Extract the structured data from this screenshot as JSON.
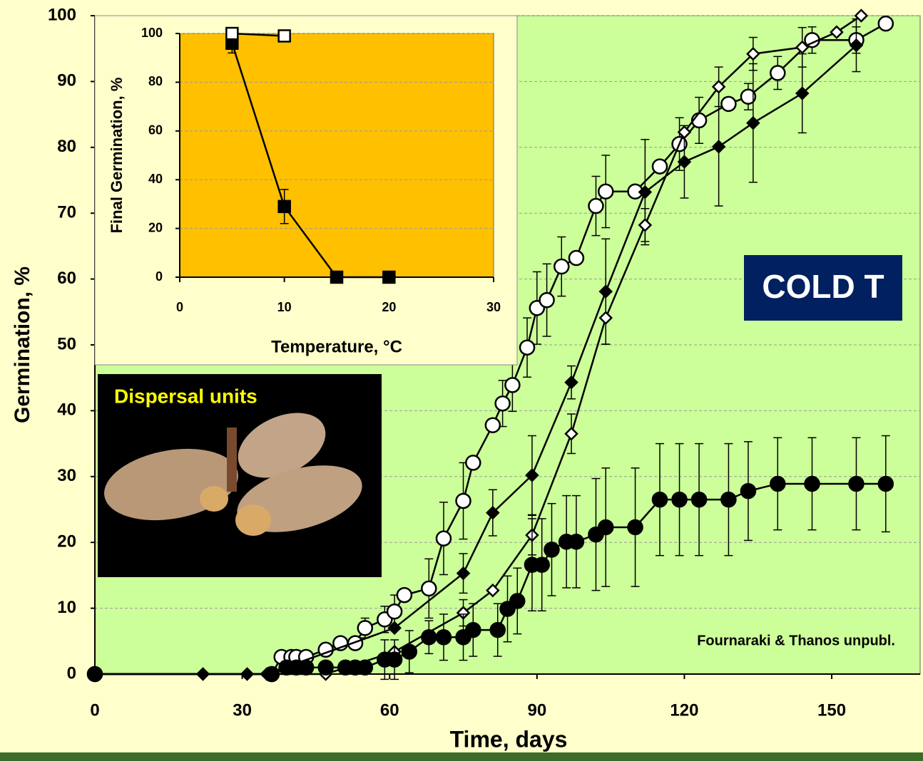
{
  "chart_data": [
    {
      "type": "line",
      "xlabel": "Time, days",
      "ylabel": "Germination, %",
      "xlim": [
        0,
        168
      ],
      "ylim": [
        0,
        100
      ],
      "xticks": [
        0,
        30,
        60,
        90,
        120,
        150
      ],
      "yticks": [
        0,
        10,
        20,
        30,
        40,
        50,
        60,
        70,
        80,
        90,
        100
      ],
      "grid": true,
      "background": "#ccff99",
      "annotations": [
        "COLD T",
        "Fournaraki & Thanos unpubl.",
        "Dispersal units"
      ],
      "series": [
        {
          "marker": "circle-open",
          "color": "#000000",
          "x": [
            0,
            36,
            38,
            40,
            41,
            43,
            47,
            50,
            53,
            55,
            59,
            61,
            63,
            68,
            71,
            75,
            77,
            81,
            83,
            85,
            88,
            90,
            92,
            95,
            98,
            102,
            104,
            110,
            115,
            119,
            123,
            129,
            133,
            139,
            146,
            155,
            161
          ],
          "values": [
            0,
            0,
            2.6,
            2.6,
            2.6,
            2.6,
            3.7,
            4.7,
            4.7,
            7,
            8.3,
            9.5,
            12,
            13,
            20.6,
            26.3,
            32.1,
            37.8,
            41.1,
            43.9,
            49.6,
            55.6,
            56.8,
            61.9,
            63.2,
            71.1,
            73.3,
            73.3,
            77.1,
            80.5,
            84.1,
            86.6,
            87.7,
            91.3,
            96.3,
            96.3,
            98.8
          ],
          "errors": [
            null,
            null,
            null,
            null,
            null,
            null,
            null,
            null,
            null,
            1.5,
            2,
            2.5,
            null,
            4.5,
            5.5,
            5.8,
            null,
            null,
            3.5,
            4,
            4.5,
            5.5,
            5.5,
            4.5,
            null,
            4.5,
            5.5,
            null,
            null,
            4,
            3.5,
            null,
            2,
            2.5,
            2,
            2,
            null
          ]
        },
        {
          "marker": "diamond",
          "color": "#000000",
          "x": [
            0,
            22,
            31,
            35,
            61,
            75,
            81,
            89,
            97,
            104,
            112,
            120,
            127,
            134,
            144,
            155
          ],
          "values": [
            0,
            0,
            0,
            0,
            7,
            15.3,
            24.5,
            30.2,
            44.3,
            58.1,
            73.2,
            77.8,
            80.1,
            83.7,
            88.2,
            95.5
          ],
          "errors": [
            null,
            null,
            null,
            null,
            null,
            3,
            3.5,
            6,
            2.5,
            8,
            8,
            5.5,
            9,
            9,
            6,
            4
          ]
        },
        {
          "marker": "diamond-open",
          "color": "#000000",
          "x": [
            0,
            47,
            61,
            75,
            81,
            89,
            97,
            104,
            112,
            120,
            127,
            134,
            144,
            151,
            156
          ],
          "values": [
            0,
            0,
            3.4,
            9.3,
            12.7,
            21.1,
            36.5,
            54.1,
            68.2,
            82.3,
            89.2,
            94.2,
            95.2,
            97.5,
            100
          ],
          "errors": [
            null,
            null,
            null,
            2,
            null,
            3,
            3,
            4,
            2.5,
            null,
            3,
            2.5,
            3,
            null,
            null
          ]
        },
        {
          "marker": "circle",
          "color": "#000000",
          "x": [
            0,
            36,
            39,
            41,
            43,
            47,
            51,
            53,
            55,
            59,
            61,
            64,
            68,
            71,
            75,
            77,
            82,
            84,
            86,
            89,
            91,
            93,
            96,
            98,
            102,
            104,
            110,
            115,
            119,
            123,
            129,
            133,
            139,
            146,
            155,
            161
          ],
          "values": [
            0,
            0,
            1,
            1,
            1,
            1,
            1,
            1,
            1,
            2.2,
            2.2,
            3.4,
            5.6,
            5.6,
            5.6,
            6.7,
            6.7,
            9.9,
            11.1,
            16.6,
            16.6,
            18.9,
            20.1,
            20.1,
            21.2,
            22.3,
            22.3,
            26.5,
            26.5,
            26.5,
            26.5,
            27.8,
            28.9,
            28.9,
            28.9,
            28.9
          ],
          "errors": [
            null,
            null,
            null,
            null,
            null,
            null,
            null,
            null,
            null,
            3,
            3,
            3.2,
            2.5,
            3.5,
            3.5,
            4,
            4,
            5,
            5,
            7,
            7,
            7,
            7,
            7,
            8.5,
            9,
            9,
            8.5,
            8.5,
            8.5,
            8.5,
            7.5,
            7,
            7,
            7,
            7.3
          ]
        }
      ]
    },
    {
      "type": "line",
      "xlabel": "Temperature, °C",
      "ylabel": "Final Germination, %",
      "xlim": [
        0,
        30
      ],
      "ylim": [
        0,
        100
      ],
      "xticks": [
        0,
        10,
        20,
        30
      ],
      "yticks": [
        0,
        20,
        40,
        60,
        80,
        100
      ],
      "grid": true,
      "background": "#ffc000",
      "series": [
        {
          "marker": "square",
          "color": "#000000",
          "x": [
            5,
            10,
            15,
            20
          ],
          "values": [
            96,
            29,
            0,
            0
          ],
          "errors": [
            4,
            7,
            null,
            null
          ]
        },
        {
          "marker": "square-open",
          "color": "#000000",
          "x": [
            5,
            10
          ],
          "values": [
            100,
            99
          ],
          "errors": [
            null,
            null
          ]
        }
      ]
    }
  ]
}
